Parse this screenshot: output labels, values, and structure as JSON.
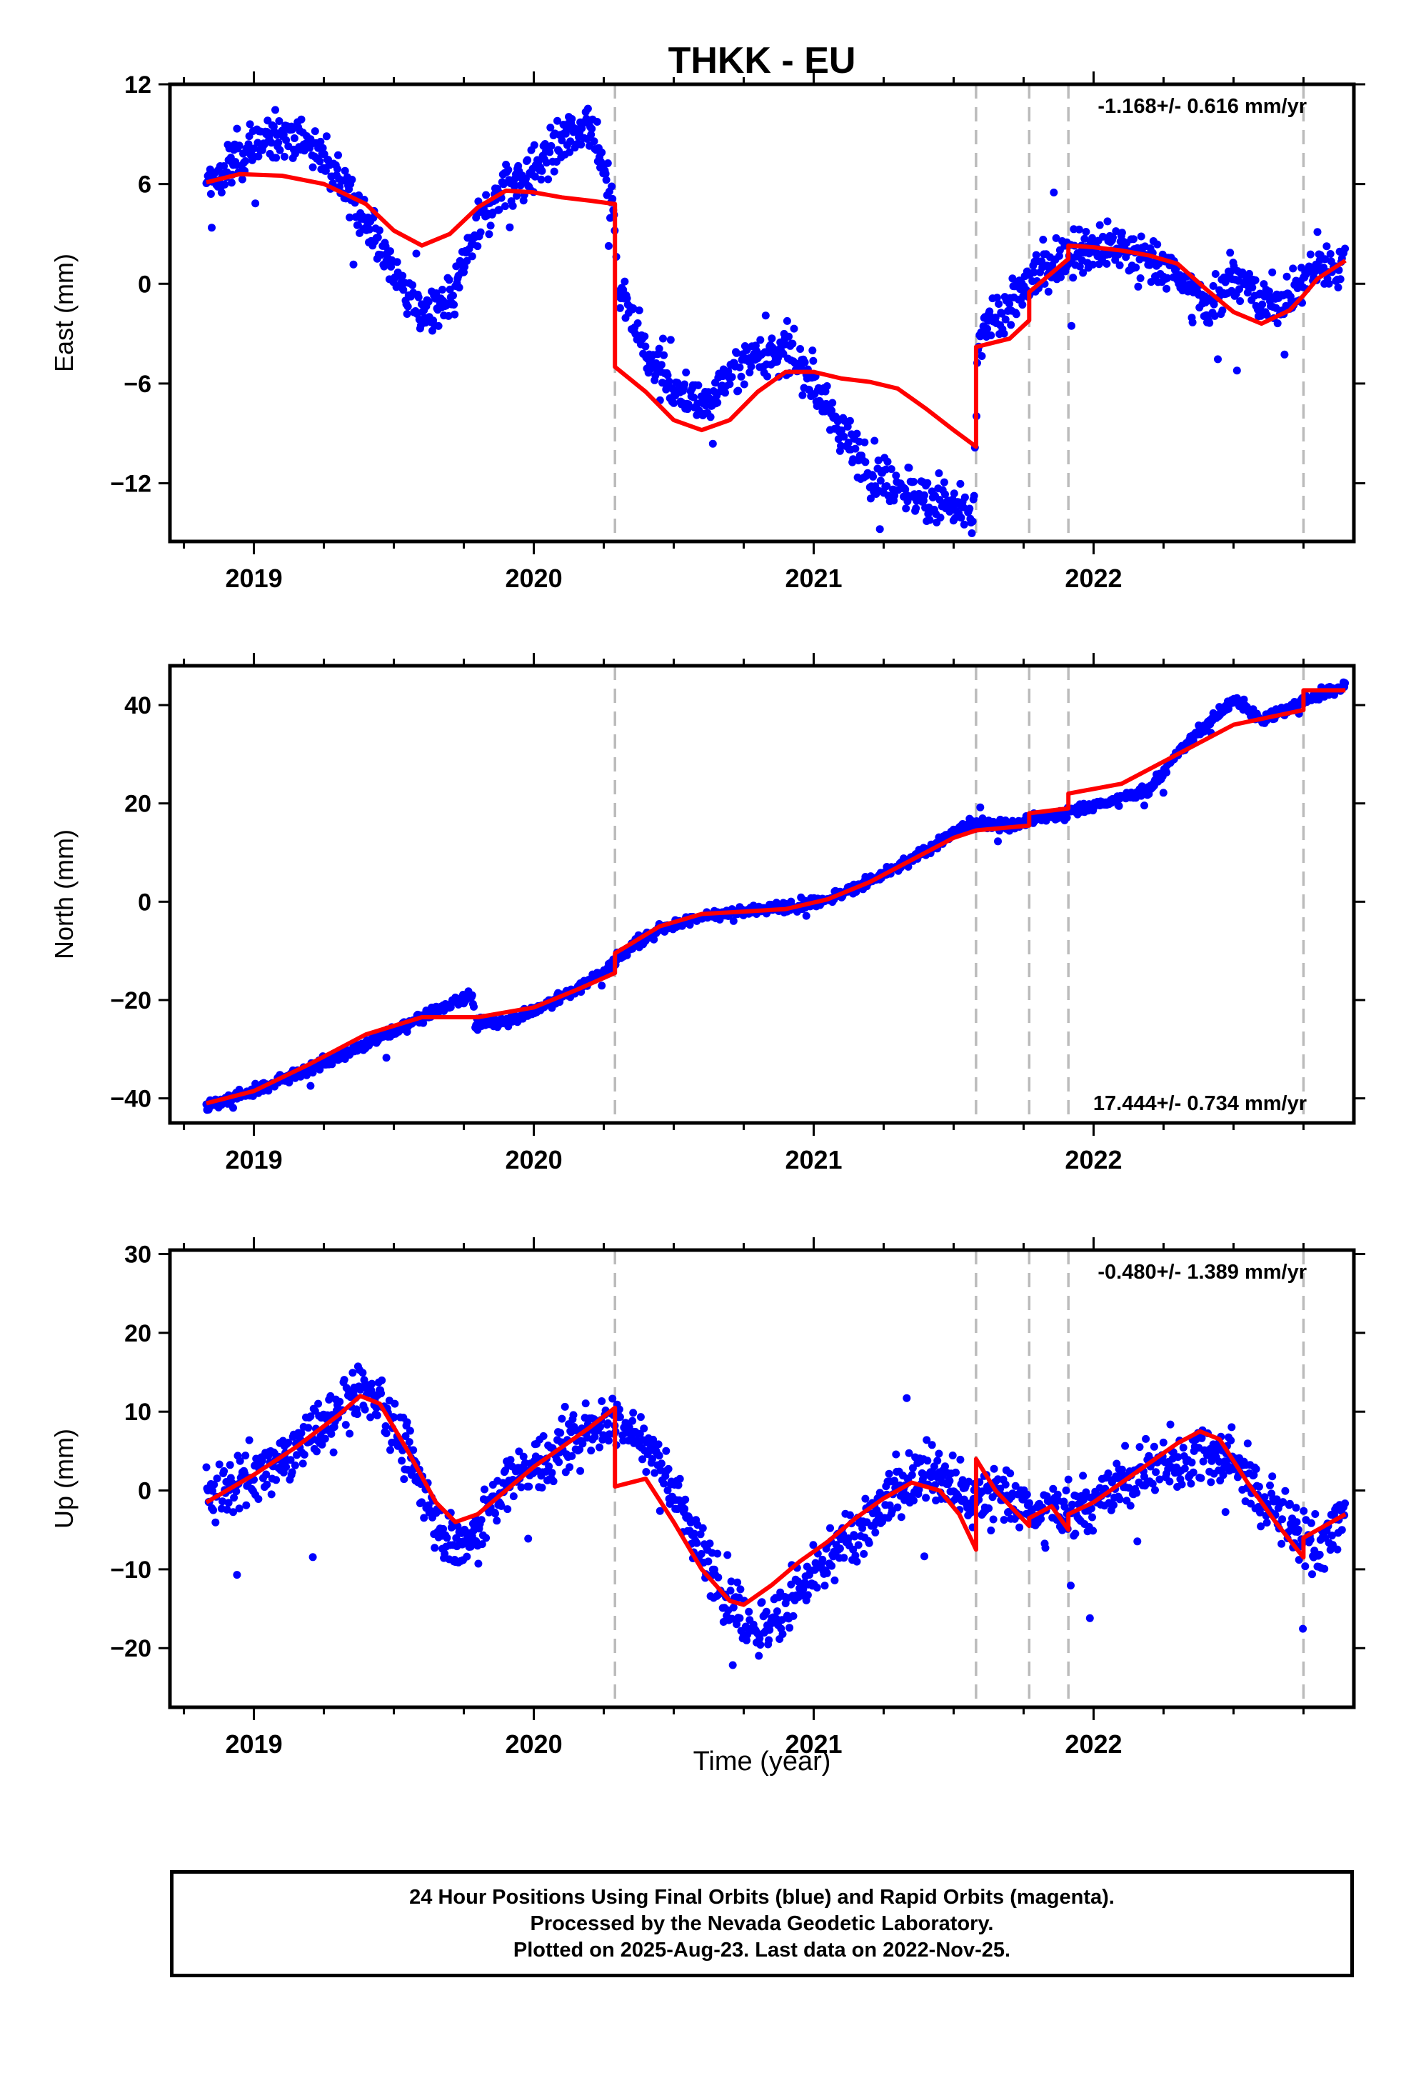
{
  "title": "THKK - EU",
  "xlabel": "Time (year)",
  "colors": {
    "data": "#0000ff",
    "model": "#ff0000",
    "break": "#bbbbbb",
    "frame": "#000000"
  },
  "footer": {
    "line1": "24 Hour Positions Using Final Orbits (blue) and Rapid Orbits (magenta).",
    "line2": "Processed by the Nevada Geodetic Laboratory.",
    "line3": "Plotted on 2025-Aug-23. Last data on 2022-Nov-25."
  },
  "chart_data": [
    {
      "type": "scatter",
      "panel": "east",
      "ylabel": "East (mm)",
      "rate_text": "-1.168+/- 0.616 mm/yr",
      "rate_position": "top-right",
      "xlim": [
        2018.7,
        2022.93
      ],
      "ylim": [
        -15.5,
        12
      ],
      "yticks": [
        12,
        6,
        0,
        -6,
        -12
      ],
      "xticks": [
        2019,
        2020,
        2021,
        2022
      ],
      "breaks": [
        2020.29,
        2021.58,
        2021.77,
        2021.91,
        2022.75
      ],
      "data_range": [
        2018.83,
        2022.9
      ],
      "model": {
        "name": "model",
        "x": [
          2018.83,
          2018.95,
          2019.1,
          2019.25,
          2019.4,
          2019.5,
          2019.6,
          2019.7,
          2019.8,
          2019.9,
          2020.0,
          2020.1,
          2020.2,
          2020.29,
          2020.29,
          2020.4,
          2020.5,
          2020.6,
          2020.7,
          2020.8,
          2020.9,
          2021.0,
          2021.1,
          2021.2,
          2021.3,
          2021.4,
          2021.5,
          2021.58,
          2021.58,
          2021.7,
          2021.77,
          2021.77,
          2021.91,
          2021.91,
          2022.0,
          2022.1,
          2022.2,
          2022.3,
          2022.4,
          2022.5,
          2022.6,
          2022.7,
          2022.75,
          2022.8,
          2022.9
        ],
        "y": [
          6.1,
          6.6,
          6.5,
          6.0,
          4.8,
          3.2,
          2.3,
          3.0,
          4.6,
          5.6,
          5.5,
          5.2,
          5.0,
          4.8,
          -5.0,
          -6.5,
          -8.2,
          -8.8,
          -8.2,
          -6.5,
          -5.3,
          -5.3,
          -5.7,
          -5.9,
          -6.3,
          -7.5,
          -8.8,
          -9.8,
          -3.8,
          -3.3,
          -2.2,
          -0.5,
          1.5,
          2.3,
          2.2,
          2.0,
          1.7,
          1.2,
          -0.3,
          -1.7,
          -2.4,
          -1.6,
          -0.7,
          0.3,
          1.4
        ]
      },
      "trend": {
        "x": [
          2018.83,
          2018.95,
          2019.1,
          2019.25,
          2019.4,
          2019.5,
          2019.6,
          2019.7,
          2019.8,
          2019.9,
          2020.0,
          2020.1,
          2020.2,
          2020.28,
          2020.3,
          2020.4,
          2020.5,
          2020.6,
          2020.7,
          2020.8,
          2020.9,
          2021.0,
          2021.1,
          2021.2,
          2021.3,
          2021.4,
          2021.5,
          2021.57,
          2021.59,
          2021.7,
          2021.8,
          2021.9,
          2022.0,
          2022.1,
          2022.2,
          2022.3,
          2022.4,
          2022.5,
          2022.6,
          2022.7,
          2022.8,
          2022.9
        ],
        "y": [
          5.6,
          7.6,
          9.2,
          7.8,
          3.8,
          0.8,
          -2.0,
          -1.2,
          3.5,
          6.0,
          6.8,
          8.5,
          10.0,
          5.0,
          0.0,
          -4.0,
          -6.5,
          -7.5,
          -5.5,
          -4.2,
          -4.0,
          -6.0,
          -9.0,
          -11.0,
          -12.0,
          -13.0,
          -13.5,
          -14.0,
          -3.2,
          -1.2,
          0.5,
          1.8,
          2.2,
          2.2,
          1.3,
          0.6,
          -1.5,
          0.6,
          -1.2,
          -0.8,
          1.0,
          1.0
        ]
      },
      "noise": 1.3
    },
    {
      "type": "scatter",
      "panel": "north",
      "ylabel": "North (mm)",
      "rate_text": "17.444+/- 0.734 mm/yr",
      "rate_position": "bottom-right",
      "xlim": [
        2018.7,
        2022.93
      ],
      "ylim": [
        -45,
        48
      ],
      "yticks": [
        40,
        20,
        0,
        -20,
        -40
      ],
      "xticks": [
        2019,
        2020,
        2021,
        2022
      ],
      "breaks": [
        2020.29,
        2021.58,
        2021.77,
        2021.91,
        2022.75
      ],
      "data_range": [
        2018.83,
        2022.9
      ],
      "model": {
        "name": "model",
        "x": [
          2018.83,
          2019.0,
          2019.2,
          2019.4,
          2019.6,
          2019.8,
          2020.0,
          2020.15,
          2020.29,
          2020.29,
          2020.45,
          2020.6,
          2020.75,
          2020.9,
          2021.05,
          2021.2,
          2021.35,
          2021.5,
          2021.58,
          2021.58,
          2021.77,
          2021.77,
          2021.91,
          2021.91,
          2022.1,
          2022.3,
          2022.5,
          2022.75,
          2022.75,
          2022.9
        ],
        "y": [
          -41,
          -38.5,
          -33,
          -27,
          -23.5,
          -23.5,
          -21.5,
          -18,
          -14.5,
          -10.5,
          -5,
          -2.5,
          -2,
          -1.5,
          0.5,
          4,
          8.5,
          13,
          14.5,
          14.5,
          15.5,
          18,
          19,
          22,
          24,
          30,
          36,
          39,
          43,
          43
        ]
      },
      "trend": {
        "x": [
          2018.83,
          2019.0,
          2019.2,
          2019.4,
          2019.55,
          2019.65,
          2019.75,
          2019.78,
          2019.79,
          2019.9,
          2020.0,
          2020.15,
          2020.28,
          2020.3,
          2020.45,
          2020.6,
          2020.75,
          2020.9,
          2021.05,
          2021.2,
          2021.35,
          2021.5,
          2021.58,
          2021.7,
          2021.8,
          2021.9,
          2022.0,
          2022.1,
          2022.2,
          2022.3,
          2022.4,
          2022.5,
          2022.6,
          2022.7,
          2022.8,
          2022.9
        ],
        "y": [
          -41.5,
          -38.5,
          -34,
          -29,
          -25,
          -22,
          -19.5,
          -19,
          -25,
          -24.5,
          -22,
          -18,
          -13,
          -11,
          -5.5,
          -3,
          -2,
          -1,
          0.5,
          4,
          8.5,
          14,
          16,
          15.5,
          17,
          18,
          19.5,
          21,
          23,
          30,
          36,
          41,
          37,
          39.5,
          42,
          44
        ]
      },
      "noise": 1.0
    },
    {
      "type": "scatter",
      "panel": "up",
      "ylabel": "Up (mm)",
      "rate_text": "-0.480+/- 1.389 mm/yr",
      "rate_position": "top-right",
      "xlim": [
        2018.7,
        2022.93
      ],
      "ylim": [
        -27.5,
        30.5
      ],
      "yticks": [
        30,
        20,
        10,
        0,
        -10,
        -20
      ],
      "xticks": [
        2019,
        2020,
        2021,
        2022
      ],
      "breaks": [
        2020.29,
        2021.58,
        2021.77,
        2021.91,
        2022.75
      ],
      "data_range": [
        2018.83,
        2022.9
      ],
      "model": {
        "name": "model",
        "x": [
          2018.83,
          2019.0,
          2019.15,
          2019.3,
          2019.38,
          2019.45,
          2019.55,
          2019.65,
          2019.72,
          2019.8,
          2019.9,
          2020.0,
          2020.1,
          2020.2,
          2020.29,
          2020.29,
          2020.4,
          2020.5,
          2020.6,
          2020.7,
          2020.75,
          2020.85,
          2020.95,
          2021.05,
          2021.15,
          2021.25,
          2021.35,
          2021.45,
          2021.52,
          2021.58,
          2021.58,
          2021.65,
          2021.77,
          2021.77,
          2021.85,
          2021.91,
          2021.91,
          2022.0,
          2022.1,
          2022.2,
          2022.3,
          2022.38,
          2022.45,
          2022.55,
          2022.65,
          2022.75,
          2022.75,
          2022.9
        ],
        "y": [
          -1.5,
          2,
          5.5,
          9.5,
          12,
          11,
          5,
          -1.5,
          -4,
          -3,
          0,
          3,
          5.5,
          8,
          10.5,
          0.5,
          1.5,
          -4,
          -10,
          -14,
          -14.5,
          -12,
          -9,
          -6.5,
          -3.5,
          -1,
          1,
          0,
          -3,
          -7.5,
          4,
          0,
          -4.5,
          -3.5,
          -2,
          -5,
          -3,
          -1.5,
          1,
          3.5,
          6,
          7.5,
          6.5,
          1,
          -4,
          -8.5,
          -6,
          -3
        ]
      },
      "trend": {
        "x": [
          2018.83,
          2019.0,
          2019.15,
          2019.3,
          2019.38,
          2019.45,
          2019.55,
          2019.65,
          2019.72,
          2019.8,
          2019.9,
          2020.0,
          2020.1,
          2020.2,
          2020.28,
          2020.3,
          2020.4,
          2020.5,
          2020.6,
          2020.7,
          2020.8,
          2020.9,
          2021.0,
          2021.1,
          2021.2,
          2021.3,
          2021.4,
          2021.5,
          2021.57,
          2021.59,
          2021.7,
          2021.8,
          2021.9,
          2022.0,
          2022.1,
          2022.2,
          2022.3,
          2022.4,
          2022.5,
          2022.6,
          2022.7,
          2022.8,
          2022.9
        ],
        "y": [
          -1,
          2,
          5,
          10,
          13,
          12,
          4,
          -4,
          -7,
          -5,
          1,
          3,
          5.5,
          8,
          9,
          9,
          6,
          0,
          -8,
          -13,
          -18,
          -15,
          -11,
          -7,
          -4,
          0,
          3,
          1,
          -2,
          0,
          -1,
          -3,
          -2,
          -2,
          1,
          3,
          3,
          5,
          4,
          -1,
          -4,
          -8,
          -2
        ]
      },
      "noise": 3.3
    }
  ]
}
